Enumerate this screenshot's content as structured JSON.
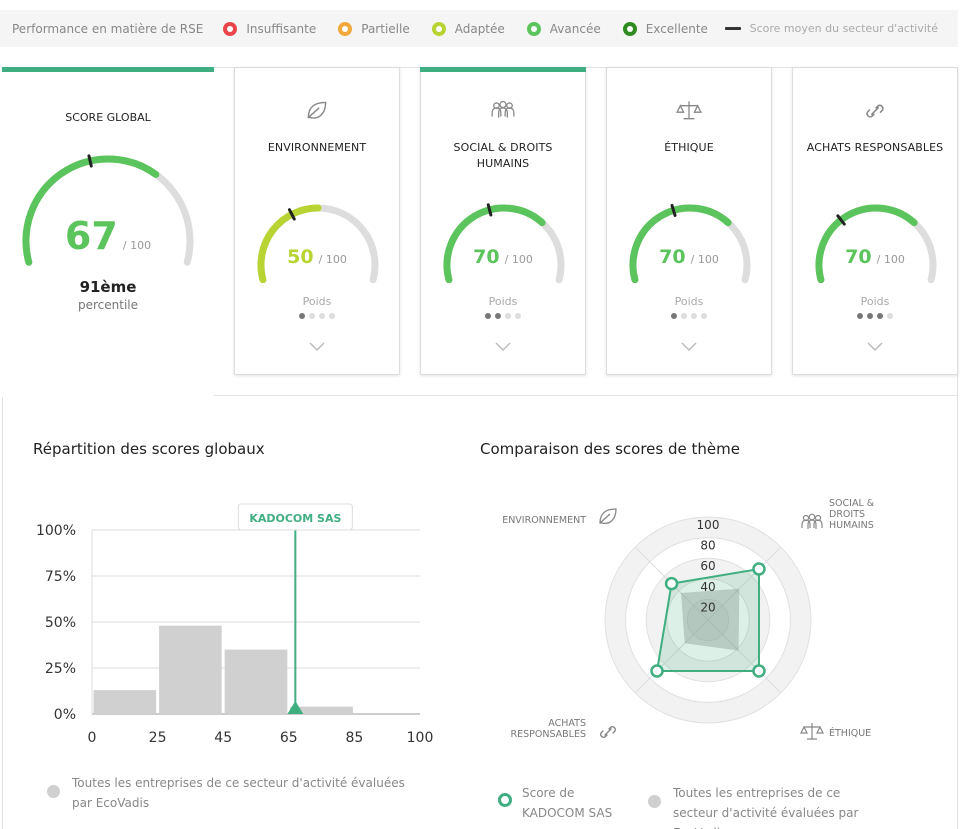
{
  "legend": {
    "title": "Performance en matière de RSE",
    "items": [
      {
        "label": "Insuffisante",
        "color": "#e8464a"
      },
      {
        "label": "Partielle",
        "color": "#f2a93b"
      },
      {
        "label": "Adaptée",
        "color": "#b7d433"
      },
      {
        "label": "Avancée",
        "color": "#5cc45c"
      },
      {
        "label": "Excellente",
        "color": "#2e8b1f"
      }
    ],
    "avg_label": "Score moyen du secteur d'activité"
  },
  "global": {
    "title": "SCORE GLOBAL",
    "score": "67",
    "out_of": "/ 100",
    "percentile_value": "91ème",
    "percentile_label": "percentile",
    "score_value": 67,
    "sector_avg": 44,
    "color": "#5cc45c"
  },
  "themes": [
    {
      "title_lines": [
        "ENVIRONNEMENT"
      ],
      "icon": "leaf-icon",
      "score": "50",
      "out_of": "/ 100",
      "score_value": 50,
      "sector_avg": 37,
      "color": "#b7d433",
      "poids_label": "Poids",
      "weight": 1,
      "topbar": false
    },
    {
      "title_lines": [
        "SOCIAL & DROITS",
        "HUMAINS"
      ],
      "icon": "people-icon",
      "score": "70",
      "out_of": "/ 100",
      "score_value": 70,
      "sector_avg": 43,
      "color": "#5cc45c",
      "poids_label": "Poids",
      "weight": 2,
      "topbar": true
    },
    {
      "title_lines": [
        "ÉTHIQUE"
      ],
      "icon": "scales-icon",
      "score": "70",
      "out_of": "/ 100",
      "score_value": 70,
      "sector_avg": 42,
      "color": "#5cc45c",
      "poids_label": "Poids",
      "weight": 1,
      "topbar": false
    },
    {
      "title_lines": [
        "ACHATS RESPONSABLES"
      ],
      "icon": "link-icon",
      "score": "70",
      "out_of": "/ 100",
      "score_value": 70,
      "sector_avg": 32,
      "color": "#5cc45c",
      "poids_label": "Poids",
      "weight": 3,
      "topbar": false
    }
  ],
  "distribution": {
    "title": "Répartition des scores globaux",
    "marker_label": "KADOCOM SAS",
    "legend_label": "Toutes les entreprises de ce secteur d'activité évaluées par EcoVadis"
  },
  "radar": {
    "title": "Comparaison des scores de thème",
    "legend_company": "Score de KADOCOM SAS",
    "legend_sector": "Toutes les entreprises de ce secteur d'activité évaluées par EcoVadis",
    "axes": [
      {
        "label": "ENVIRONNEMENT"
      },
      {
        "label": "SOCIAL & DROITS HUMAINS"
      },
      {
        "label": "ÉTHIQUE"
      },
      {
        "label": "ACHATS RESPONSABLES"
      }
    ]
  },
  "chart_data": [
    {
      "type": "bar",
      "title": "Répartition des scores globaux",
      "x_ticks": [
        "0",
        "25",
        "45",
        "65",
        "85",
        "100"
      ],
      "y_ticks": [
        "0%",
        "25%",
        "50%",
        "75%",
        "100%"
      ],
      "ylim": [
        0,
        100
      ],
      "bins": [
        {
          "from": 0,
          "to": 25,
          "value": 13
        },
        {
          "from": 25,
          "to": 45,
          "value": 48
        },
        {
          "from": 45,
          "to": 65,
          "value": 35
        },
        {
          "from": 65,
          "to": 85,
          "value": 4
        },
        {
          "from": 85,
          "to": 100,
          "value": 0
        }
      ],
      "marker": {
        "label": "KADOCOM SAS",
        "x": 67
      },
      "grid": true
    },
    {
      "type": "radar",
      "title": "Comparaison des scores de thème",
      "axes": [
        "ENVIRONNEMENT",
        "SOCIAL & DROITS HUMAINS",
        "ÉTHIQUE",
        "ACHATS RESPONSABLES"
      ],
      "r_ticks": [
        "20",
        "40",
        "60",
        "80",
        "100"
      ],
      "rlim": [
        0,
        100
      ],
      "series": [
        {
          "name": "Score de KADOCOM SAS",
          "values": [
            50,
            70,
            70,
            70
          ]
        },
        {
          "name": "Toutes les entreprises de ce secteur d'activité évaluées par EcoVadis",
          "values": [
            37,
            43,
            42,
            32
          ]
        }
      ]
    }
  ]
}
